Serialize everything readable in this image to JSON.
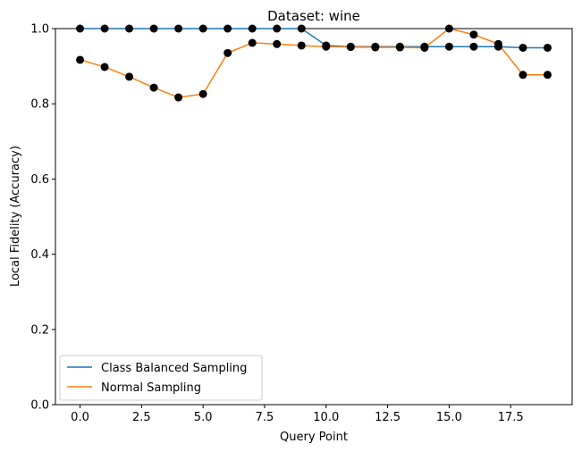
{
  "chart_data": {
    "type": "line",
    "title": "Dataset: wine",
    "xlabel": "Query Point",
    "ylabel": "Local Fidelity (Accuracy)",
    "xlim": [
      -1,
      20
    ],
    "ylim": [
      0,
      1
    ],
    "xticks": [
      0,
      2.5,
      5,
      7.5,
      10,
      12.5,
      15,
      17.5
    ],
    "xtick_labels": [
      "0.0",
      "2.5",
      "5.0",
      "7.5",
      "10.0",
      "12.5",
      "15.0",
      "17.5"
    ],
    "yticks": [
      0,
      0.2,
      0.4,
      0.6,
      0.8,
      1.0
    ],
    "ytick_labels": [
      "0.0",
      "0.2",
      "0.4",
      "0.6",
      "0.8",
      "1.0"
    ],
    "grid": false,
    "legend_position": "lower-left",
    "marker_color": "#000000",
    "x": [
      0,
      1,
      2,
      3,
      4,
      5,
      6,
      7,
      8,
      9,
      10,
      11,
      12,
      13,
      14,
      15,
      16,
      17,
      18,
      19
    ],
    "series": [
      {
        "name": "Class Balanced Sampling",
        "color": "#1f77b4",
        "values": [
          1.0,
          1.0,
          1.0,
          1.0,
          1.0,
          1.0,
          1.0,
          1.0,
          1.0,
          1.0,
          0.955,
          0.952,
          0.952,
          0.952,
          0.952,
          0.952,
          0.952,
          0.952,
          0.949,
          0.949
        ]
      },
      {
        "name": "Normal Sampling",
        "color": "#ff7f0e",
        "values": [
          0.917,
          0.898,
          0.872,
          0.843,
          0.817,
          0.826,
          0.935,
          0.962,
          0.959,
          0.955,
          0.952,
          0.951,
          0.95,
          0.95,
          0.949,
          1.0,
          0.984,
          0.959,
          0.877,
          0.877
        ]
      }
    ]
  }
}
